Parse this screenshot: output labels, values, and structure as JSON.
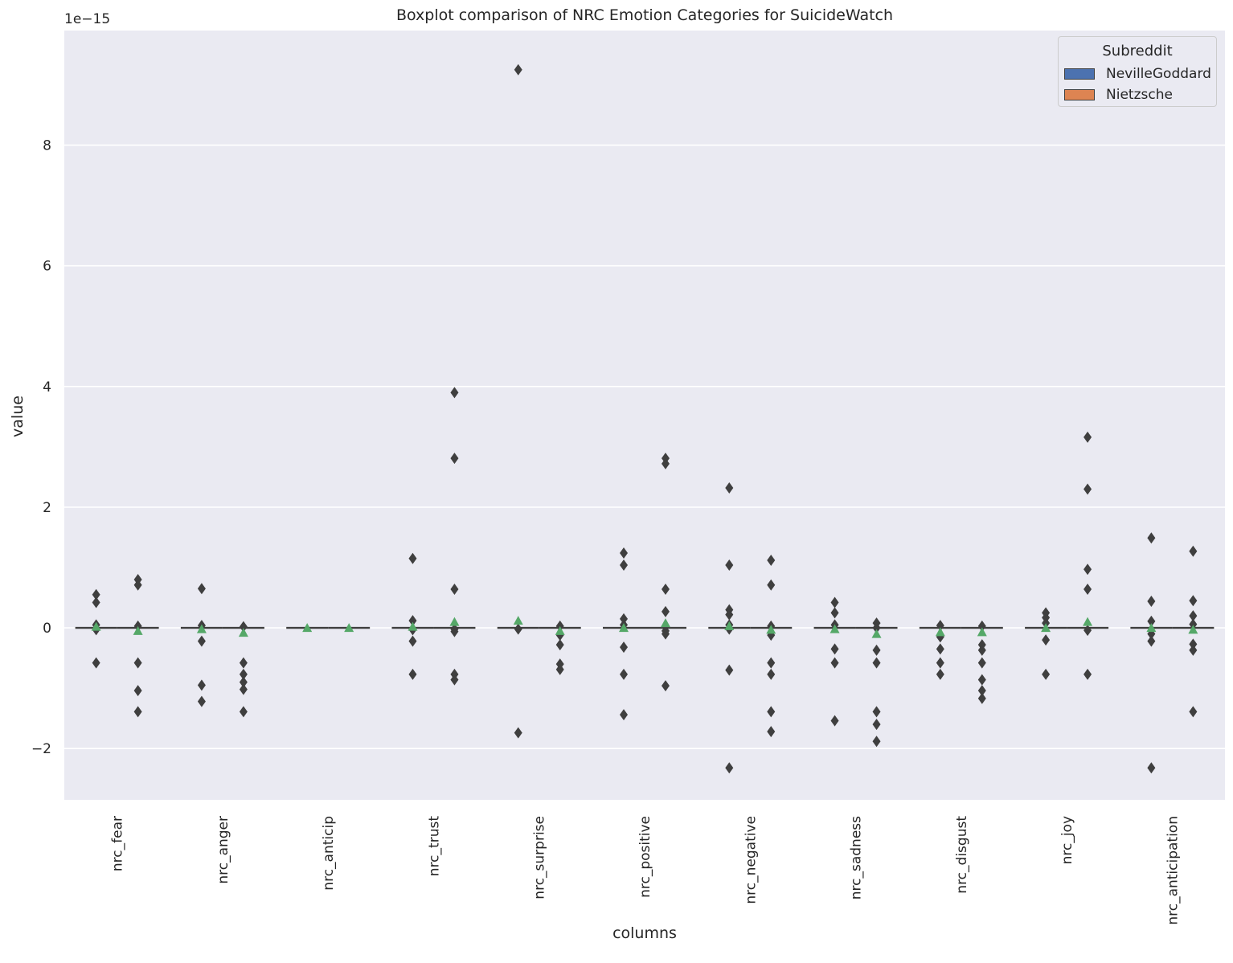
{
  "chart_data": {
    "type": "box",
    "title": "Boxplot comparison of NRC Emotion Categories for SuicideWatch",
    "xlabel": "columns",
    "ylabel": "value",
    "y_offset_text": "1e−15",
    "y_scale": 1e-15,
    "ylim": [
      -2.85,
      9.9
    ],
    "yticks": [
      -2,
      0,
      2,
      4,
      6,
      8
    ],
    "ytick_labels": [
      "−2",
      "0",
      "2",
      "4",
      "6",
      "8"
    ],
    "grid": true,
    "legend": {
      "title": "Subreddit",
      "placement": "top-right"
    },
    "categories": [
      "nrc_fear",
      "nrc_anger",
      "nrc_anticip",
      "nrc_trust",
      "nrc_surprise",
      "nrc_positive",
      "nrc_negative",
      "nrc_sadness",
      "nrc_disgust",
      "nrc_joy",
      "nrc_anticipation"
    ],
    "series": [
      {
        "name": "NevilleGoddard",
        "color": "#4c72b0",
        "median": [
          0,
          0,
          0,
          0,
          0,
          0,
          0,
          0,
          0,
          0,
          0
        ],
        "mean": [
          0.02,
          -0.02,
          0,
          0.02,
          0.12,
          0.0,
          0.03,
          -0.02,
          -0.07,
          0.0,
          0.0
        ],
        "outliers": [
          [
            0.55,
            0.42,
            0.05,
            -0.03,
            -0.58
          ],
          [
            0.65,
            0.04,
            -0.22,
            -0.95,
            -1.22
          ],
          [],
          [
            1.15,
            0.12,
            -0.03,
            -0.22,
            -0.77
          ],
          [
            9.25,
            -0.02,
            -1.74
          ],
          [
            1.24,
            1.04,
            0.15,
            0.05,
            -0.32,
            -0.77,
            -1.44
          ],
          [
            2.32,
            1.04,
            0.3,
            0.22,
            0.05,
            -0.02,
            -0.7,
            -2.32
          ],
          [
            0.42,
            0.25,
            0.05,
            -0.35,
            -0.58,
            -1.54
          ],
          [
            0.04,
            -0.15,
            -0.35,
            -0.58,
            -0.77
          ],
          [
            0.25,
            0.17,
            0.08,
            -0.2,
            -0.77
          ],
          [
            1.49,
            0.44,
            0.11,
            -0.1,
            -0.22,
            -2.32
          ]
        ]
      },
      {
        "name": "Nietzsche",
        "color": "#dd8452",
        "median": [
          0,
          0,
          0,
          0,
          0,
          0,
          0,
          0,
          0,
          0,
          0
        ],
        "mean": [
          -0.05,
          -0.08,
          0,
          0.1,
          -0.05,
          0.08,
          -0.03,
          -0.1,
          -0.07,
          0.1,
          -0.03
        ],
        "outliers": [
          [
            0.8,
            0.71,
            0.03,
            -0.58,
            -1.04,
            -1.39
          ],
          [
            0.02,
            -0.58,
            -0.77,
            -0.9,
            -1.02,
            -1.39
          ],
          [],
          [
            3.9,
            2.81,
            0.64,
            -0.02,
            -0.06,
            -0.77,
            -0.86
          ],
          [
            0.03,
            -0.12,
            -0.28,
            -0.6,
            -0.69
          ],
          [
            2.81,
            2.72,
            0.64,
            0.27,
            -0.05,
            -0.1,
            -0.96
          ],
          [
            1.12,
            0.71,
            0.03,
            -0.12,
            -0.58,
            -0.77,
            -1.39,
            -1.72
          ],
          [
            0.08,
            0.0,
            -0.37,
            -0.58,
            -1.39,
            -1.6,
            -1.88
          ],
          [
            0.03,
            -0.28,
            -0.37,
            -0.58,
            -0.86,
            -1.04,
            -1.17
          ],
          [
            3.16,
            2.3,
            0.97,
            0.64,
            -0.04,
            -0.77
          ],
          [
            1.27,
            0.45,
            0.2,
            0.06,
            -0.27,
            -0.37,
            -1.39
          ]
        ]
      }
    ]
  }
}
